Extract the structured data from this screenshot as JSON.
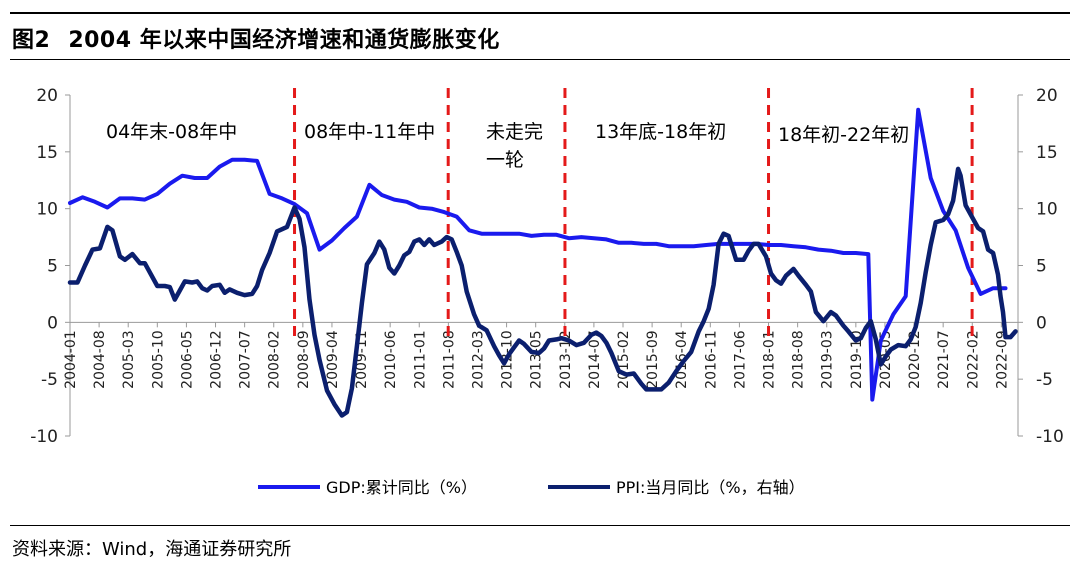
{
  "header": {
    "figure_number": "图2",
    "title": "2004 年以来中国经济增速和通货膨胀变化"
  },
  "source": "资料来源：Wind，海通证券研究所",
  "colors": {
    "gdp": "#1a1aee",
    "ppi": "#0b1f6e",
    "divider": "#e41a1a",
    "axis": "#9a9a9a"
  },
  "chart_data": {
    "type": "line",
    "title": "2004 年以来中国经济增速和通货膨胀变化",
    "x_tick_labels": [
      "2004-01",
      "2004-08",
      "2005-03",
      "2005-10",
      "2006-05",
      "2006-12",
      "2007-07",
      "2008-02",
      "2008-09",
      "2009-04",
      "2009-11",
      "2010-06",
      "2011-01",
      "2011-08",
      "2012-03",
      "2012-10",
      "2013-05",
      "2013-12",
      "2014-07",
      "2015-02",
      "2015-09",
      "2016-04",
      "2016-11",
      "2017-06",
      "2018-01",
      "2018-08",
      "2019-03",
      "2019-10",
      "2020-05",
      "2020-12",
      "2021-07",
      "2022-02",
      "2022-09"
    ],
    "y_left": {
      "min": -10,
      "max": 20,
      "ticks": [
        "-10",
        "-5",
        "0",
        "5",
        "10",
        "15",
        "20"
      ]
    },
    "y_right": {
      "min": -10,
      "max": 20,
      "ticks": [
        "-10",
        "-5",
        "0",
        "5",
        "10",
        "15",
        "20"
      ]
    },
    "legend": [
      "GDP:累计同比（%）",
      "PPI:当月同比（%，右轴）"
    ],
    "legend_position": "bottom-center",
    "dividers": [
      2008.5,
      2011.58,
      2013.92,
      2018.0,
      2022.08
    ],
    "periods": [
      {
        "lines": [
          "04年末-08年中"
        ]
      },
      {
        "lines": [
          "08年中-11年中"
        ]
      },
      {
        "lines": [
          "未走完",
          "一轮"
        ]
      },
      {
        "lines": [
          "13年底-18年初"
        ]
      },
      {
        "lines": [
          "18年初-22年初"
        ]
      }
    ],
    "series": [
      {
        "name": "GDP:累计同比（%）",
        "axis": "left",
        "points": [
          [
            2004.0,
            10.5
          ],
          [
            2004.25,
            11.0
          ],
          [
            2004.5,
            10.6
          ],
          [
            2004.75,
            10.1
          ],
          [
            2005.0,
            10.9
          ],
          [
            2005.25,
            10.9
          ],
          [
            2005.5,
            10.8
          ],
          [
            2005.75,
            11.3
          ],
          [
            2006.0,
            12.2
          ],
          [
            2006.25,
            12.9
          ],
          [
            2006.5,
            12.7
          ],
          [
            2006.75,
            12.7
          ],
          [
            2007.0,
            13.7
          ],
          [
            2007.25,
            14.3
          ],
          [
            2007.5,
            14.3
          ],
          [
            2007.75,
            14.2
          ],
          [
            2008.0,
            11.3
          ],
          [
            2008.25,
            10.9
          ],
          [
            2008.5,
            10.4
          ],
          [
            2008.75,
            9.6
          ],
          [
            2009.0,
            6.4
          ],
          [
            2009.25,
            7.2
          ],
          [
            2009.5,
            8.3
          ],
          [
            2009.75,
            9.3
          ],
          [
            2010.0,
            12.1
          ],
          [
            2010.25,
            11.2
          ],
          [
            2010.5,
            10.8
          ],
          [
            2010.75,
            10.6
          ],
          [
            2011.0,
            10.1
          ],
          [
            2011.25,
            10.0
          ],
          [
            2011.5,
            9.7
          ],
          [
            2011.75,
            9.3
          ],
          [
            2012.0,
            8.1
          ],
          [
            2012.25,
            7.8
          ],
          [
            2012.5,
            7.8
          ],
          [
            2012.75,
            7.8
          ],
          [
            2013.0,
            7.8
          ],
          [
            2013.25,
            7.6
          ],
          [
            2013.5,
            7.7
          ],
          [
            2013.75,
            7.7
          ],
          [
            2014.0,
            7.4
          ],
          [
            2014.25,
            7.5
          ],
          [
            2014.5,
            7.4
          ],
          [
            2014.75,
            7.3
          ],
          [
            2015.0,
            7.0
          ],
          [
            2015.25,
            7.0
          ],
          [
            2015.5,
            6.9
          ],
          [
            2015.75,
            6.9
          ],
          [
            2016.0,
            6.7
          ],
          [
            2016.25,
            6.7
          ],
          [
            2016.5,
            6.7
          ],
          [
            2016.75,
            6.8
          ],
          [
            2017.0,
            6.9
          ],
          [
            2017.25,
            6.9
          ],
          [
            2017.5,
            6.9
          ],
          [
            2017.75,
            6.9
          ],
          [
            2018.0,
            6.8
          ],
          [
            2018.25,
            6.8
          ],
          [
            2018.5,
            6.7
          ],
          [
            2018.75,
            6.6
          ],
          [
            2019.0,
            6.4
          ],
          [
            2019.25,
            6.3
          ],
          [
            2019.5,
            6.1
          ],
          [
            2019.75,
            6.1
          ],
          [
            2020.0,
            6.0
          ],
          [
            2020.08,
            -6.8
          ],
          [
            2020.25,
            -1.6
          ],
          [
            2020.5,
            0.7
          ],
          [
            2020.75,
            2.3
          ],
          [
            2021.0,
            18.7
          ],
          [
            2021.25,
            12.7
          ],
          [
            2021.5,
            9.8
          ],
          [
            2021.75,
            8.1
          ],
          [
            2022.0,
            4.8
          ],
          [
            2022.25,
            2.5
          ],
          [
            2022.5,
            3.0
          ],
          [
            2022.75,
            3.0
          ]
        ]
      },
      {
        "name": "PPI:当月同比（%，右轴）",
        "axis": "right",
        "points": [
          [
            2004.0,
            3.5
          ],
          [
            2004.15,
            3.5
          ],
          [
            2004.3,
            5.0
          ],
          [
            2004.45,
            6.4
          ],
          [
            2004.6,
            6.5
          ],
          [
            2004.75,
            8.4
          ],
          [
            2004.85,
            8.1
          ],
          [
            2005.0,
            5.8
          ],
          [
            2005.1,
            5.5
          ],
          [
            2005.25,
            6.0
          ],
          [
            2005.4,
            5.2
          ],
          [
            2005.5,
            5.2
          ],
          [
            2005.6,
            4.4
          ],
          [
            2005.75,
            3.2
          ],
          [
            2005.9,
            3.2
          ],
          [
            2006.0,
            3.1
          ],
          [
            2006.1,
            2.0
          ],
          [
            2006.2,
            2.8
          ],
          [
            2006.3,
            3.6
          ],
          [
            2006.45,
            3.5
          ],
          [
            2006.55,
            3.6
          ],
          [
            2006.65,
            3.0
          ],
          [
            2006.75,
            2.8
          ],
          [
            2006.85,
            3.2
          ],
          [
            2007.0,
            3.3
          ],
          [
            2007.1,
            2.6
          ],
          [
            2007.2,
            2.9
          ],
          [
            2007.35,
            2.6
          ],
          [
            2007.5,
            2.4
          ],
          [
            2007.65,
            2.5
          ],
          [
            2007.75,
            3.2
          ],
          [
            2007.85,
            4.6
          ],
          [
            2008.0,
            6.1
          ],
          [
            2008.15,
            8.0
          ],
          [
            2008.35,
            8.4
          ],
          [
            2008.5,
            10.1
          ],
          [
            2008.6,
            9.1
          ],
          [
            2008.7,
            6.6
          ],
          [
            2008.8,
            2.0
          ],
          [
            2008.9,
            -1.1
          ],
          [
            2009.0,
            -3.3
          ],
          [
            2009.15,
            -6.0
          ],
          [
            2009.3,
            -7.2
          ],
          [
            2009.45,
            -8.2
          ],
          [
            2009.55,
            -7.9
          ],
          [
            2009.65,
            -5.8
          ],
          [
            2009.75,
            -2.1
          ],
          [
            2009.85,
            1.7
          ],
          [
            2009.95,
            5.1
          ],
          [
            2010.1,
            6.1
          ],
          [
            2010.2,
            7.1
          ],
          [
            2010.3,
            6.4
          ],
          [
            2010.4,
            4.8
          ],
          [
            2010.5,
            4.3
          ],
          [
            2010.6,
            5.0
          ],
          [
            2010.7,
            5.9
          ],
          [
            2010.8,
            6.2
          ],
          [
            2010.9,
            7.1
          ],
          [
            2011.0,
            7.3
          ],
          [
            2011.1,
            6.8
          ],
          [
            2011.2,
            7.3
          ],
          [
            2011.3,
            6.8
          ],
          [
            2011.45,
            7.1
          ],
          [
            2011.55,
            7.5
          ],
          [
            2011.65,
            7.3
          ],
          [
            2011.75,
            6.2
          ],
          [
            2011.85,
            5.0
          ],
          [
            2011.95,
            2.7
          ],
          [
            2012.1,
            0.7
          ],
          [
            2012.2,
            -0.3
          ],
          [
            2012.35,
            -0.7
          ],
          [
            2012.5,
            -2.1
          ],
          [
            2012.6,
            -2.9
          ],
          [
            2012.7,
            -3.6
          ],
          [
            2012.8,
            -2.8
          ],
          [
            2012.9,
            -2.2
          ],
          [
            2013.0,
            -1.6
          ],
          [
            2013.1,
            -1.9
          ],
          [
            2013.25,
            -2.6
          ],
          [
            2013.4,
            -2.7
          ],
          [
            2013.5,
            -2.3
          ],
          [
            2013.6,
            -1.6
          ],
          [
            2013.75,
            -1.5
          ],
          [
            2013.85,
            -1.4
          ],
          [
            2014.0,
            -1.6
          ],
          [
            2014.15,
            -2.0
          ],
          [
            2014.3,
            -1.8
          ],
          [
            2014.45,
            -1.1
          ],
          [
            2014.55,
            -0.9
          ],
          [
            2014.65,
            -1.2
          ],
          [
            2014.75,
            -1.8
          ],
          [
            2014.85,
            -2.7
          ],
          [
            2015.0,
            -4.3
          ],
          [
            2015.15,
            -4.6
          ],
          [
            2015.3,
            -4.5
          ],
          [
            2015.45,
            -5.4
          ],
          [
            2015.55,
            -5.9
          ],
          [
            2015.7,
            -5.9
          ],
          [
            2015.85,
            -5.9
          ],
          [
            2016.0,
            -5.3
          ],
          [
            2016.15,
            -4.3
          ],
          [
            2016.3,
            -3.4
          ],
          [
            2016.45,
            -2.6
          ],
          [
            2016.6,
            -0.8
          ],
          [
            2016.7,
            0.1
          ],
          [
            2016.8,
            1.2
          ],
          [
            2016.9,
            3.3
          ],
          [
            2017.0,
            6.9
          ],
          [
            2017.1,
            7.8
          ],
          [
            2017.2,
            7.6
          ],
          [
            2017.35,
            5.5
          ],
          [
            2017.5,
            5.5
          ],
          [
            2017.6,
            6.3
          ],
          [
            2017.7,
            6.9
          ],
          [
            2017.8,
            6.9
          ],
          [
            2017.95,
            5.8
          ],
          [
            2018.05,
            4.3
          ],
          [
            2018.15,
            3.7
          ],
          [
            2018.25,
            3.4
          ],
          [
            2018.35,
            4.1
          ],
          [
            2018.5,
            4.7
          ],
          [
            2018.6,
            4.1
          ],
          [
            2018.75,
            3.3
          ],
          [
            2018.85,
            2.7
          ],
          [
            2018.95,
            0.9
          ],
          [
            2019.1,
            0.1
          ],
          [
            2019.25,
            0.9
          ],
          [
            2019.35,
            0.6
          ],
          [
            2019.5,
            -0.3
          ],
          [
            2019.6,
            -0.8
          ],
          [
            2019.75,
            -1.6
          ],
          [
            2019.85,
            -1.4
          ],
          [
            2019.95,
            -0.5
          ],
          [
            2020.05,
            0.1
          ],
          [
            2020.15,
            -1.5
          ],
          [
            2020.25,
            -3.7
          ],
          [
            2020.35,
            -3.0
          ],
          [
            2020.45,
            -2.4
          ],
          [
            2020.6,
            -2.0
          ],
          [
            2020.75,
            -2.1
          ],
          [
            2020.85,
            -1.5
          ],
          [
            2020.95,
            -0.4
          ],
          [
            2021.05,
            1.7
          ],
          [
            2021.15,
            4.4
          ],
          [
            2021.25,
            6.8
          ],
          [
            2021.35,
            8.8
          ],
          [
            2021.5,
            9.0
          ],
          [
            2021.6,
            9.5
          ],
          [
            2021.7,
            10.7
          ],
          [
            2021.8,
            13.5
          ],
          [
            2021.85,
            12.9
          ],
          [
            2021.95,
            10.3
          ],
          [
            2022.1,
            9.1
          ],
          [
            2022.2,
            8.3
          ],
          [
            2022.3,
            8.0
          ],
          [
            2022.4,
            6.4
          ],
          [
            2022.5,
            6.1
          ],
          [
            2022.6,
            4.2
          ],
          [
            2022.65,
            2.3
          ],
          [
            2022.7,
            0.9
          ],
          [
            2022.75,
            -1.3
          ],
          [
            2022.85,
            -1.3
          ],
          [
            2022.95,
            -0.8
          ]
        ]
      }
    ]
  }
}
